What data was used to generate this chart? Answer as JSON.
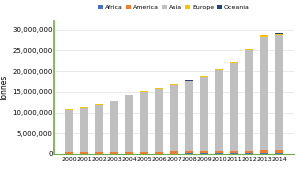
{
  "years": [
    2000,
    2001,
    2002,
    2003,
    2004,
    2005,
    2006,
    2007,
    2008,
    2009,
    2010,
    2011,
    2012,
    2013,
    2014
  ],
  "Africa": [
    67000,
    70000,
    75000,
    80000,
    90000,
    95000,
    100000,
    105000,
    110000,
    120000,
    130000,
    140000,
    155000,
    165000,
    175000
  ],
  "America": [
    370000,
    380000,
    390000,
    410000,
    430000,
    450000,
    480000,
    490000,
    510000,
    540000,
    570000,
    600000,
    640000,
    680000,
    720000
  ],
  "Asia": [
    10200000,
    10700000,
    11400000,
    12200000,
    13600000,
    14500000,
    15200000,
    16000000,
    16900000,
    18000000,
    19600000,
    21300000,
    24200000,
    27500000,
    27900000
  ],
  "Europe": [
    160000,
    165000,
    170000,
    175000,
    185000,
    195000,
    200000,
    210000,
    220000,
    230000,
    240000,
    250000,
    265000,
    275000,
    285000
  ],
  "Oceania": [
    15000,
    16000,
    17000,
    18000,
    19000,
    20000,
    21000,
    22000,
    23000,
    24000,
    26000,
    28000,
    30000,
    32000,
    34000
  ],
  "colors": {
    "Africa": "#4472C4",
    "America": "#ED7D31",
    "Asia": "#BFBFBF",
    "Europe": "#FFC000",
    "Oceania": "#264478"
  },
  "ylabel": "Tonnes",
  "ylim": [
    0,
    32000000
  ],
  "yticks": [
    0,
    5000000,
    10000000,
    15000000,
    20000000,
    25000000,
    30000000
  ],
  "background_color": "#FFFFFF",
  "plot_background": "#FFFFFF",
  "legend_labels": [
    "Africa",
    "America",
    "Asia",
    "Europe",
    "Oceania"
  ],
  "left_spine_color": "#70AD47",
  "bottom_spine_color": "#70AD47"
}
